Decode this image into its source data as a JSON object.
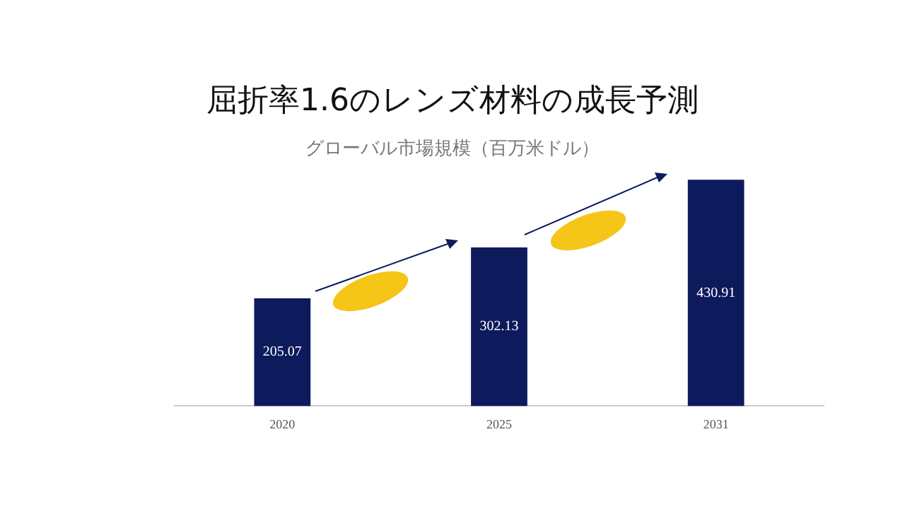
{
  "chart_data": {
    "type": "bar",
    "title": "屈折率1.6のレンズ材料の成長予測",
    "subtitle": "グローバル市場規模（百万米ドル）",
    "categories": [
      "2020",
      "2025",
      "2031"
    ],
    "values": [
      205.07,
      302.13,
      430.91
    ],
    "color": "#0d1a5c",
    "data_labels": true,
    "grid": false,
    "legend": false
  }
}
